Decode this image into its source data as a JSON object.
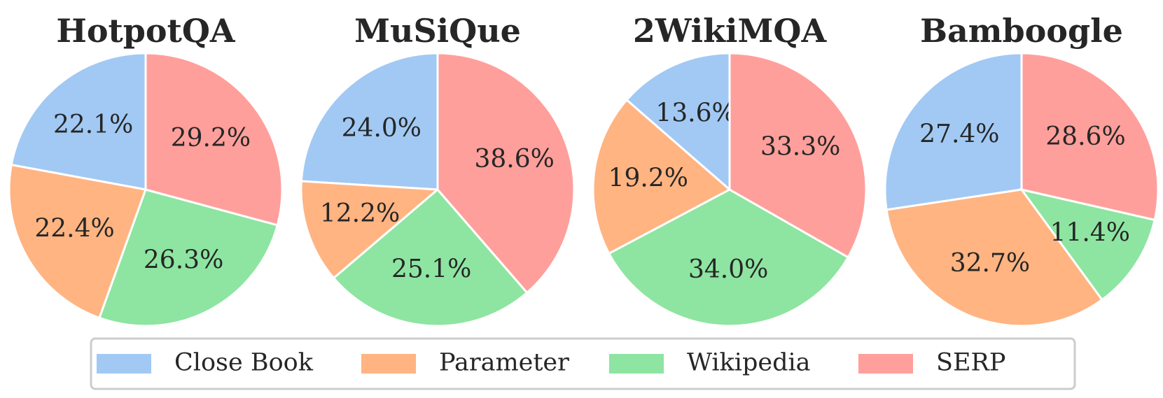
{
  "chart_data": {
    "type": "pie",
    "categories": [
      "Close Book",
      "Parameter",
      "Wikipedia",
      "SERP"
    ],
    "colors": [
      "#a1c9f4",
      "#ffb482",
      "#8de5a1",
      "#ff9f9b"
    ],
    "start_angle_deg": 90,
    "direction": "counterclockwise",
    "legend": {
      "placement": "bottom-center",
      "entries": [
        "Close Book",
        "Parameter",
        "Wikipedia",
        "SERP"
      ]
    },
    "charts": [
      {
        "title": "HotpotQA",
        "values": [
          22.1,
          22.4,
          26.3,
          29.2
        ],
        "labels": [
          "22.1%",
          "22.4%",
          "26.3%",
          "29.2%"
        ]
      },
      {
        "title": "MuSiQue",
        "values": [
          24.0,
          12.2,
          25.1,
          38.6
        ],
        "labels": [
          "24.0%",
          "12.2%",
          "25.1%",
          "38.6%"
        ]
      },
      {
        "title": "2WikiMQA",
        "values": [
          13.6,
          19.2,
          34.0,
          33.3
        ],
        "labels": [
          "13.6%",
          "19.2%",
          "34.0%",
          "33.3%"
        ]
      },
      {
        "title": "Bamboogle",
        "values": [
          27.4,
          32.7,
          11.4,
          28.6
        ],
        "labels": [
          "27.4%",
          "32.7%",
          "11.4%",
          "28.6%"
        ]
      }
    ]
  }
}
